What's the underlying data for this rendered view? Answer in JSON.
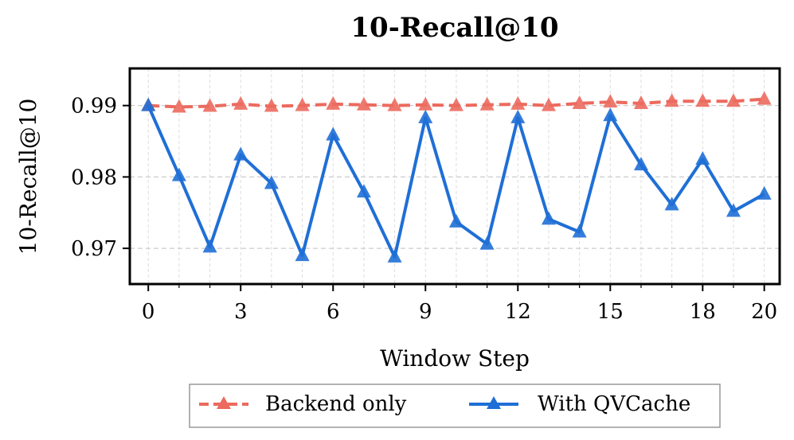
{
  "chart_data": {
    "type": "line",
    "title": "10-Recall@10",
    "xlabel": "Window Step",
    "ylabel": "10-Recall@10",
    "xlim": [
      -0.6,
      20.5
    ],
    "ylim": [
      0.965,
      0.9952
    ],
    "x_ticks": [
      0,
      3,
      6,
      9,
      12,
      15,
      18,
      20
    ],
    "y_ticks": [
      0.97,
      0.98,
      0.99
    ],
    "y_tick_labels": [
      "0.97",
      "0.98",
      "0.99"
    ],
    "grid": true,
    "legend_position": "bottom-center",
    "x": [
      0,
      1,
      2,
      3,
      4,
      5,
      6,
      7,
      8,
      9,
      10,
      11,
      12,
      13,
      14,
      15,
      16,
      17,
      18,
      19,
      20
    ],
    "series": [
      {
        "name": "Backend only",
        "color": "#ec6a5e",
        "style": "dashed",
        "marker": "triangle-up",
        "values": [
          0.99,
          0.9898,
          0.9899,
          0.9902,
          0.9899,
          0.99,
          0.9902,
          0.9901,
          0.99,
          0.9901,
          0.99,
          0.9901,
          0.9902,
          0.99,
          0.9903,
          0.9905,
          0.9903,
          0.9906,
          0.9906,
          0.9906,
          0.9909
        ]
      },
      {
        "name": "With QVCache",
        "color": "#1f6fd6",
        "style": "solid",
        "marker": "triangle-up",
        "values": [
          0.99,
          0.9802,
          0.9702,
          0.9831,
          0.9791,
          0.969,
          0.9859,
          0.9779,
          0.9688,
          0.9883,
          0.9737,
          0.9706,
          0.9883,
          0.9741,
          0.9723,
          0.9886,
          0.9817,
          0.9761,
          0.9825,
          0.9752,
          0.9776
        ]
      }
    ]
  }
}
